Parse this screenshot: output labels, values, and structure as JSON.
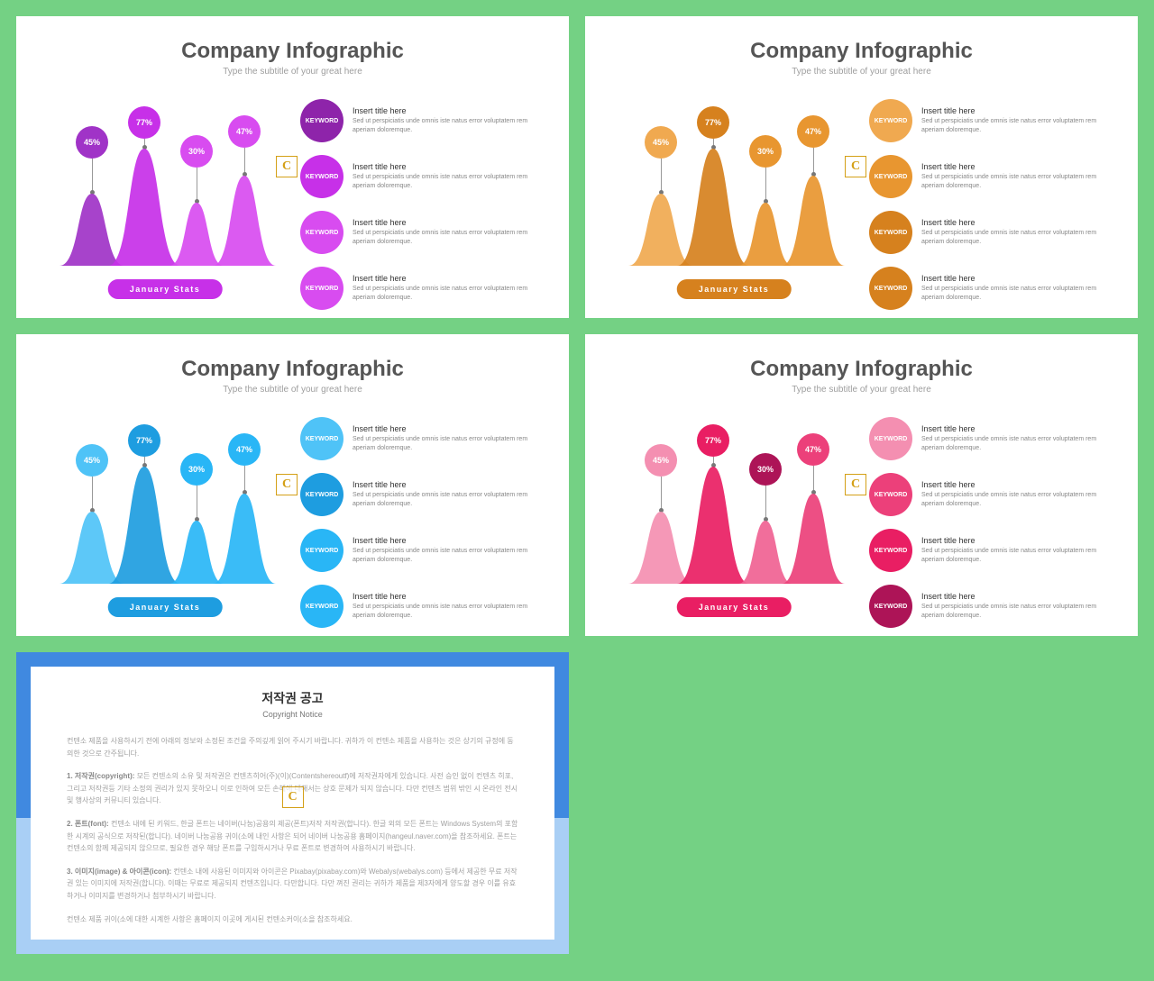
{
  "page_bg": "#74d184",
  "slides": [
    {
      "title": "Company Infographic",
      "subtitle": "Type the subtitle of your great here",
      "stats_label": "January Stats",
      "colors": {
        "hills": [
          "#a033c7",
          "#c730e8",
          "#d84cf0",
          "#d84cf0"
        ],
        "balloons": [
          "#a033c7",
          "#c730e8",
          "#d84cf0",
          "#d84cf0"
        ],
        "keywords": [
          "#8e24aa",
          "#c730e8",
          "#d84cf0",
          "#d84cf0"
        ],
        "pill": "#c730e8"
      },
      "balloons": [
        "45%",
        "77%",
        "30%",
        "47%"
      ],
      "hill_heights": [
        80,
        130,
        70,
        100
      ],
      "hill_widths": [
        72,
        80,
        60,
        70
      ],
      "hill_x": [
        18,
        72,
        140,
        188
      ],
      "keywords": [
        {
          "label": "KEYWORD",
          "title": "Insert title here",
          "body": "Sed ut perspiciatis unde omnis iste natus error voluptatem rem aperiam doloremque."
        },
        {
          "label": "KEYWORD",
          "title": "Insert title here",
          "body": "Sed ut perspiciatis unde omnis iste natus error voluptatem rem aperiam doloremque."
        },
        {
          "label": "KEYWORD",
          "title": "Insert title here",
          "body": "Sed ut perspiciatis unde omnis iste natus error voluptatem rem aperiam doloremque."
        },
        {
          "label": "KEYWORD",
          "title": "Insert title here",
          "body": "Sed ut perspiciatis unde omnis iste natus error voluptatem rem aperiam doloremque."
        }
      ]
    },
    {
      "title": "Company Infographic",
      "subtitle": "Type the subtitle of your great here",
      "stats_label": "January Stats",
      "colors": {
        "hills": [
          "#f0a950",
          "#d6811e",
          "#e89630",
          "#e89630"
        ],
        "balloons": [
          "#f0a950",
          "#d6811e",
          "#e89630",
          "#e89630"
        ],
        "keywords": [
          "#f0a950",
          "#e89630",
          "#d6811e",
          "#d6811e"
        ],
        "pill": "#d6811e"
      },
      "balloons": [
        "45%",
        "77%",
        "30%",
        "47%"
      ],
      "hill_heights": [
        80,
        130,
        70,
        100
      ],
      "hill_widths": [
        72,
        80,
        60,
        70
      ],
      "hill_x": [
        18,
        72,
        140,
        188
      ],
      "keywords": [
        {
          "label": "KEYWORD",
          "title": "Insert title here",
          "body": "Sed ut perspiciatis unde omnis iste natus error voluptatem rem aperiam doloremque."
        },
        {
          "label": "KEYWORD",
          "title": "Insert title here",
          "body": "Sed ut perspiciatis unde omnis iste natus error voluptatem rem aperiam doloremque."
        },
        {
          "label": "KEYWORD",
          "title": "Insert title here",
          "body": "Sed ut perspiciatis unde omnis iste natus error voluptatem rem aperiam doloremque."
        },
        {
          "label": "KEYWORD",
          "title": "Insert title here",
          "body": "Sed ut perspiciatis unde omnis iste natus error voluptatem rem aperiam doloremque."
        }
      ]
    },
    {
      "title": "Company Infographic",
      "subtitle": "Type the subtitle of your great here",
      "stats_label": "January Stats",
      "colors": {
        "hills": [
          "#4fc3f7",
          "#1e9de0",
          "#29b6f6",
          "#29b6f6"
        ],
        "balloons": [
          "#4fc3f7",
          "#1e9de0",
          "#29b6f6",
          "#29b6f6"
        ],
        "keywords": [
          "#4fc3f7",
          "#1e9de0",
          "#29b6f6",
          "#29b6f6"
        ],
        "pill": "#1e9de0"
      },
      "balloons": [
        "45%",
        "77%",
        "30%",
        "47%"
      ],
      "hill_heights": [
        80,
        130,
        70,
        100
      ],
      "hill_widths": [
        72,
        80,
        60,
        70
      ],
      "hill_x": [
        18,
        72,
        140,
        188
      ],
      "keywords": [
        {
          "label": "KEYWORD",
          "title": "Insert title here",
          "body": "Sed ut perspiciatis unde omnis iste natus error voluptatem rem aperiam doloremque."
        },
        {
          "label": "KEYWORD",
          "title": "Insert title here",
          "body": "Sed ut perspiciatis unde omnis iste natus error voluptatem rem aperiam doloremque."
        },
        {
          "label": "KEYWORD",
          "title": "Insert title here",
          "body": "Sed ut perspiciatis unde omnis iste natus error voluptatem rem aperiam doloremque."
        },
        {
          "label": "KEYWORD",
          "title": "Insert title here",
          "body": "Sed ut perspiciatis unde omnis iste natus error voluptatem rem aperiam doloremque."
        }
      ]
    },
    {
      "title": "Company Infographic",
      "subtitle": "Type the subtitle of your great here",
      "stats_label": "January Stats",
      "colors": {
        "hills": [
          "#f48fb1",
          "#e91e63",
          "#f06292",
          "#ec407a"
        ],
        "balloons": [
          "#f48fb1",
          "#e91e63",
          "#ad1457",
          "#ec407a"
        ],
        "keywords": [
          "#f48fb1",
          "#ec407a",
          "#e91e63",
          "#ad1457"
        ],
        "pill": "#e91e63"
      },
      "balloons": [
        "45%",
        "77%",
        "30%",
        "47%"
      ],
      "hill_heights": [
        80,
        130,
        70,
        100
      ],
      "hill_widths": [
        72,
        80,
        60,
        70
      ],
      "hill_x": [
        18,
        72,
        140,
        188
      ],
      "keywords": [
        {
          "label": "KEYWORD",
          "title": "Insert title here",
          "body": "Sed ut perspiciatis unde omnis iste natus error voluptatem rem aperiam doloremque."
        },
        {
          "label": "KEYWORD",
          "title": "Insert title here",
          "body": "Sed ut perspiciatis unde omnis iste natus error voluptatem rem aperiam doloremque."
        },
        {
          "label": "KEYWORD",
          "title": "Insert title here",
          "body": "Sed ut perspiciatis unde omnis iste natus error voluptatem rem aperiam doloremque."
        },
        {
          "label": "KEYWORD",
          "title": "Insert title here",
          "body": "Sed ut perspiciatis unde omnis iste natus error voluptatem rem aperiam doloremque."
        }
      ]
    }
  ],
  "copyright": {
    "title": "저작권 공고",
    "subtitle": "Copyright Notice",
    "p1": "컨텐소 제품을 사용하시기 전에 아래의 정보와 소정된 조건을 주의깊게 읽어 주시기 바랍니다. 귀하가 이 컨텐소 제품을 사용하는 것은 상기의 규정에 동의한 것으로 간주됩니다.",
    "p2_label": "1. 저작권(copyright):",
    "p2": "모든 컨텐소의 소유 및 저작권은 컨텐츠히어(주)(이)(Contentshereoutf)에 저작권자에게 있습니다. 사전 승인 없이 컨텐츠 히포, 그리고 저작권등 기타 소정의 권리가 있지 못하오니 이로 인하여 모든 손해에 대해서는 상호 문제가 되지 않습니다. 다만 컨텐츠 범위 밖인 시 온라인 전시 및 행사상의 커뮤니티 있습니다.",
    "p3_label": "2. 폰트(font):",
    "p3": "컨텐소 내에 된 키워드, 한글 폰트는 네이버(나눔)공용의 제공(폰트)저작 저작권(합니다). 한글 외의 모든 폰트는 Windows System의 포함한 시계의 공식으로 저작된(합니다). 네이버 나눔공용 귀이(소에 내인 사항은 되어 네이버 나눔공용 홈페이지(hangeul.naver.com)을 참조하세요. 폰트는 컨텐소의 함께 제공되지 않으므로, 필요한 경우 해당 폰트를 구입하시거나 무료 폰트로 변경하여 사용하시기 바랍니다.",
    "p4_label": "3. 이미지(image) & 아이콘(icon):",
    "p4": "컨텐소 내에 사용된 이미지와 아이콘은 Pixabay(pixabay.com)와 Webalys(webalys.com) 등에서 제공한 무료 저작권 있는 이미지에 저작권(합니다). 이때는 무료로 제공되지 컨텐츠입니다. 다만합니다. 다만 껴진 권리는 귀하가 제품을 제3자에게 양도할 경우 이를 유효하거나 이미지를 변경하거나 첨부하시기 바랍니다.",
    "p5": "컨텐소 제품 귀이(소에 대한 시계한 사항은 홈페이지 이곳에 게시된 컨텐소커이(소을 참조하세요."
  },
  "watermark_letter": "C"
}
